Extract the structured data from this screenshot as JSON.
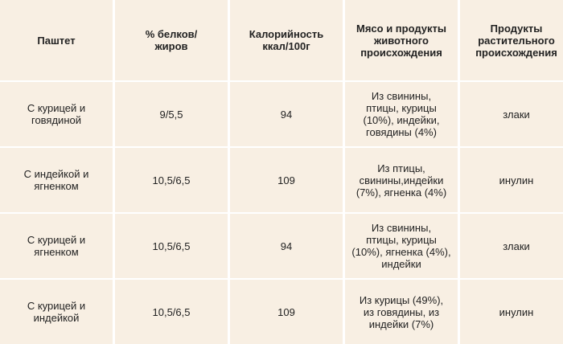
{
  "table": {
    "headers": [
      "Паштет",
      "% белков/\nжиров",
      "Калорийность\nккал/100г",
      "Мясо и продукты\nживотного\nпроисхождения",
      "Продукты\nрастительного\nпроисхождения"
    ],
    "rows": [
      [
        "С курицей и\nговядиной",
        "9/5,5",
        "94",
        "Из свинины,\nптицы, курицы\n(10%), индейки,\nговядины (4%)",
        "злаки"
      ],
      [
        "С индейкой и\nягненком",
        "10,5/6,5",
        "109",
        "Из птицы,\nсвинины,индейки\n(7%), ягненка (4%)",
        "инулин"
      ],
      [
        "С курицей и\nягненком",
        "10,5/6,5",
        "94",
        "Из свинины,\nптицы, курицы\n(10%), ягненка (4%),\nиндейки",
        "злаки"
      ],
      [
        "С курицей и\nиндейкой",
        "10,5/6,5",
        "109",
        "Из курицы (49%),\nиз говядины, из\nиндейки (7%)",
        "инулин"
      ]
    ]
  }
}
